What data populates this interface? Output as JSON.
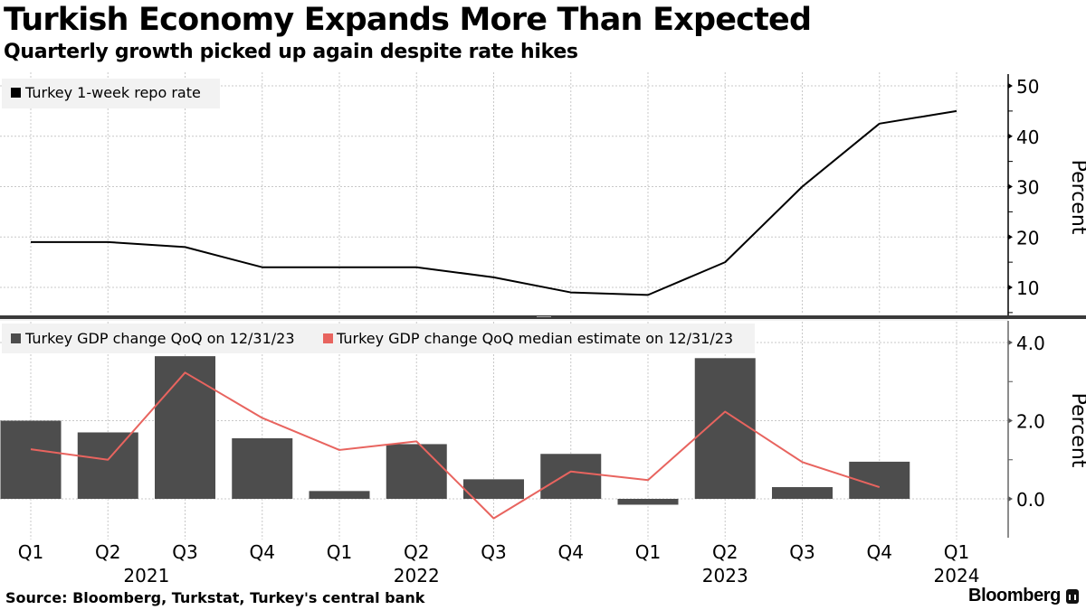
{
  "header": {
    "title": "Turkish Economy Expands More Than Expected",
    "subtitle": "Quarterly growth picked up again despite rate hikes"
  },
  "footer": {
    "source": "Source:  Bloomberg, Turkstat, Turkey's central bank",
    "brand": "Bloomberg"
  },
  "colors": {
    "repo_line": "#000000",
    "gdp_bar": "#4d4d4d",
    "estimate_line": "#e8645f",
    "legend_bg": "#f2f2f2",
    "grid": "#c8c8c8"
  },
  "chart_data": [
    {
      "type": "line",
      "title": "Turkish Economy Expands More Than Expected",
      "subtitle": "Quarterly growth picked up again despite rate hikes",
      "xlabel": "",
      "ylabel": "Percent",
      "ylim": [
        4,
        52
      ],
      "yticks": [
        10,
        20,
        30,
        40,
        50
      ],
      "grid": true,
      "legend": "top-left",
      "x": [
        "Q1 2021",
        "Q2 2021",
        "Q3 2021",
        "Q4 2021",
        "Q1 2022",
        "Q2 2022",
        "Q3 2022",
        "Q4 2022",
        "Q1 2023",
        "Q2 2023",
        "Q3 2023",
        "Q4 2023",
        "Q1 2024"
      ],
      "series": [
        {
          "name": "Turkey 1-week repo rate",
          "values": [
            19,
            19,
            18,
            14,
            14,
            14,
            12,
            9,
            8.5,
            15,
            30,
            42.5,
            45
          ]
        }
      ]
    },
    {
      "type": "bar",
      "xlabel": "",
      "ylabel": "Percent",
      "ylim": [
        -1.0,
        4.4
      ],
      "yticks": [
        "4.0",
        "2.0",
        "0.0"
      ],
      "ytick_values": [
        4,
        2,
        0
      ],
      "grid": true,
      "legend": "top-left",
      "categories": [
        "Q1",
        "Q2",
        "Q3",
        "Q4",
        "Q1",
        "Q2",
        "Q3",
        "Q4",
        "Q1",
        "Q2",
        "Q3",
        "Q4",
        "Q1"
      ],
      "years": [
        {
          "label": "2021",
          "center_index": 1.5
        },
        {
          "label": "2022",
          "center_index": 5.0
        },
        {
          "label": "2023",
          "center_index": 9.0
        },
        {
          "label": "2024",
          "center_index": 12.0
        }
      ],
      "series": [
        {
          "name": "Turkey GDP change QoQ on 12/31/23",
          "kind": "bar",
          "values": [
            2.0,
            1.7,
            3.65,
            1.55,
            0.2,
            1.4,
            0.5,
            1.15,
            -0.15,
            3.6,
            0.3,
            0.95,
            null
          ]
        },
        {
          "name": "Turkey GDP change QoQ median estimate on 12/31/23",
          "kind": "line",
          "values": [
            1.27,
            1.0,
            3.23,
            2.07,
            1.25,
            1.47,
            -0.5,
            0.7,
            0.48,
            2.23,
            0.94,
            0.3,
            null
          ]
        }
      ]
    }
  ]
}
